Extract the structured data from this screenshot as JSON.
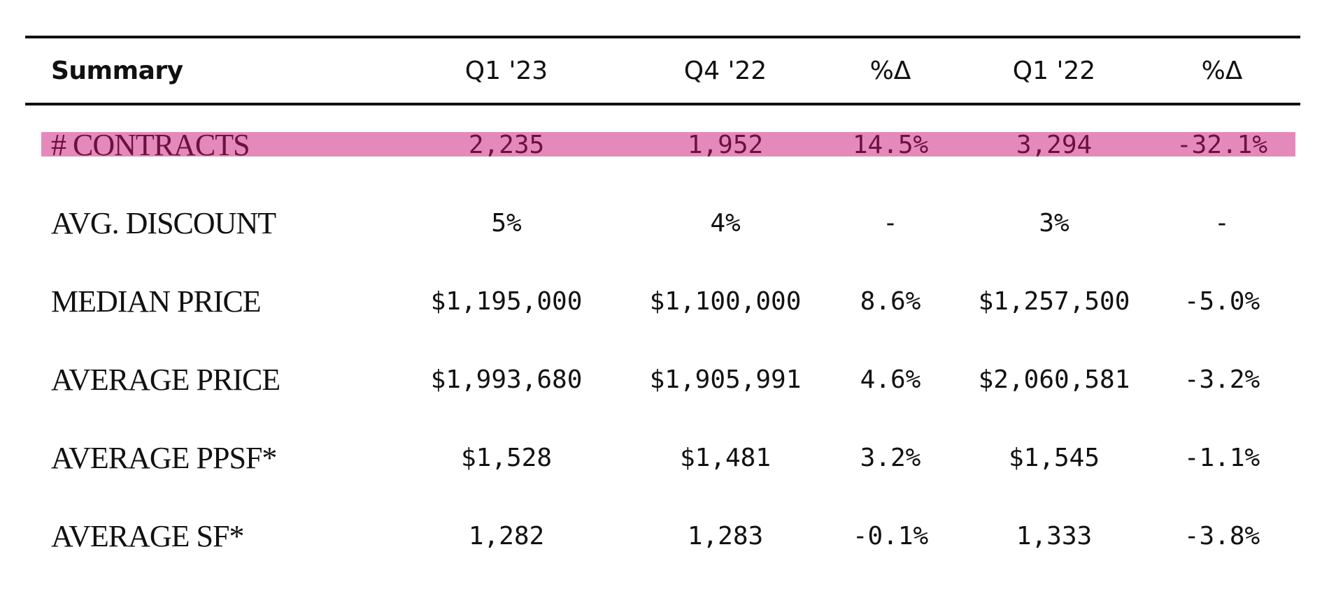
{
  "chart_data": {
    "type": "table",
    "title": "",
    "columns": [
      "Summary",
      "Q1 '23",
      "Q4 '22",
      "%Δ",
      "Q1 '22",
      "%Δ"
    ],
    "rows": [
      {
        "label": "# CONTRACTS",
        "values": [
          "2,235",
          "1,952",
          "14.5%",
          "3,294",
          "-32.1%"
        ],
        "highlighted": true
      },
      {
        "label": "AVG. DISCOUNT",
        "values": [
          "5%",
          "4%",
          "-",
          "3%",
          "-"
        ],
        "highlighted": false
      },
      {
        "label": "MEDIAN PRICE",
        "values": [
          "$1,195,000",
          "$1,100,000",
          "8.6%",
          "$1,257,500",
          "-5.0%"
        ],
        "highlighted": false
      },
      {
        "label": "AVERAGE PRICE",
        "values": [
          "$1,993,680",
          "$1,905,991",
          "4.6%",
          "$2,060,581",
          "-3.2%"
        ],
        "highlighted": false
      },
      {
        "label": "AVERAGE PPSF*",
        "values": [
          "$1,528",
          "$1,481",
          "3.2%",
          "$1,545",
          "-1.1%"
        ],
        "highlighted": false
      },
      {
        "label": "AVERAGE SF*",
        "values": [
          "1,282",
          "1,283",
          "-0.1%",
          "1,333",
          "-3.8%"
        ],
        "highlighted": false
      }
    ],
    "highlight_color": "#e589bb",
    "highlight_text_color": "#6a1140",
    "rule_color": "#111111"
  }
}
